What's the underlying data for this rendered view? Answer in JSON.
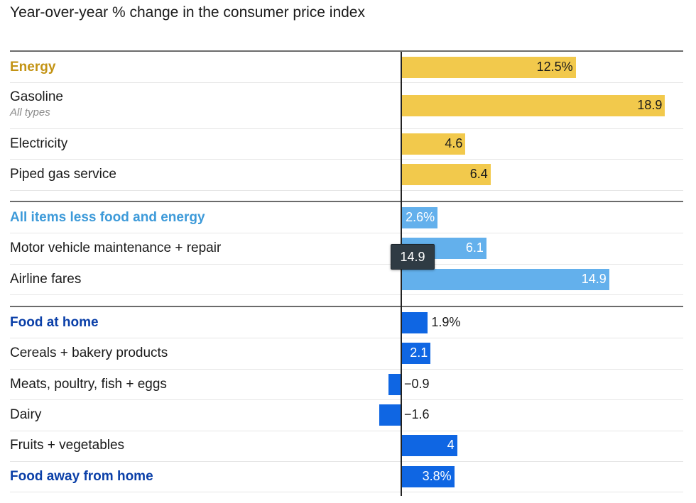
{
  "title": "Year-over-year % change in the consumer price index",
  "colors": {
    "energy": "#f2c94c",
    "energy_label": "#c39314",
    "core": "#63b0ec",
    "core_label": "#3d9ad9",
    "food": "#0f66e3",
    "food_label": "#0a3fa8"
  },
  "tooltip": {
    "value": "14.9"
  },
  "chart_data": {
    "type": "bar",
    "orientation": "horizontal",
    "title": "Year-over-year % change in the consumer price index",
    "xlim": [
      -1.6,
      18.9
    ],
    "groups": [
      {
        "name": "Energy",
        "color": "#f2c94c",
        "label_color": "#c39314",
        "rows": [
          {
            "label": "Energy",
            "value": 12.5,
            "display": "12.5%",
            "header": true
          },
          {
            "label": "Gasoline",
            "sublabel": "All types",
            "value": 18.9,
            "display": "18.9"
          },
          {
            "label": "Electricity",
            "value": 4.6,
            "display": "4.6"
          },
          {
            "label": "Piped gas service",
            "value": 6.4,
            "display": "6.4"
          }
        ]
      },
      {
        "name": "All items less food and energy",
        "color": "#63b0ec",
        "label_color": "#3d9ad9",
        "rows": [
          {
            "label": "All items less food and energy",
            "value": 2.6,
            "display": "2.6%",
            "header": true
          },
          {
            "label": "Motor vehicle maintenance + repair",
            "value": 6.1,
            "display": "6.1"
          },
          {
            "label": "Airline fares",
            "value": 14.9,
            "display": "14.9"
          }
        ]
      },
      {
        "name": "Food at home",
        "color": "#0f66e3",
        "label_color": "#0a3fa8",
        "rows": [
          {
            "label": "Food at home",
            "value": 1.9,
            "display": "1.9%",
            "header": true
          },
          {
            "label": "Cereals + bakery products",
            "value": 2.1,
            "display": "2.1"
          },
          {
            "label": "Meats, poultry, fish + eggs",
            "value": -0.9,
            "display": "−0.9"
          },
          {
            "label": "Dairy",
            "value": -1.6,
            "display": "−1.6"
          },
          {
            "label": "Fruits + vegetables",
            "value": 4,
            "display": "4"
          },
          {
            "label": "Food away from home",
            "value": 3.8,
            "display": "3.8%",
            "header": true
          }
        ]
      }
    ]
  }
}
